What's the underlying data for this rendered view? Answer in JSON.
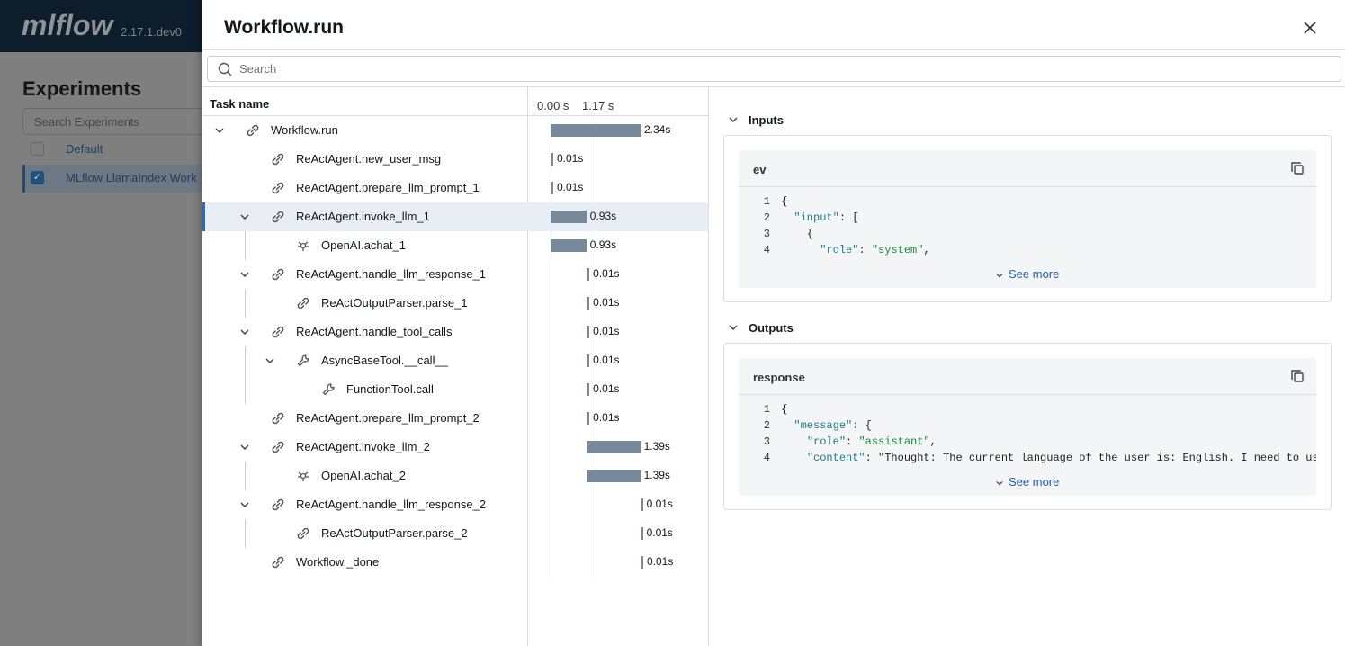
{
  "background": {
    "logo": "mlflow",
    "version": "2.17.1.dev0",
    "heading": "Experiments",
    "search_placeholder": "Search Experiments",
    "experiments": [
      "Default",
      "MLflow LlamaIndex Work"
    ]
  },
  "drawer": {
    "title": "Workflow.run",
    "search_placeholder": "Search",
    "tree": {
      "header": "Task name",
      "selected": 3,
      "timeline_ticks": [
        {
          "value": 0,
          "label": "0.00 s"
        },
        {
          "value": 1.17,
          "label": "1.17 s"
        }
      ],
      "spans": [
        {
          "name": "Workflow.run",
          "level": 0,
          "expandable": true,
          "icon": "link",
          "start": 0,
          "duration": 2.34,
          "duration_label": "2.34s"
        },
        {
          "name": "ReActAgent.new_user_msg",
          "level": 1,
          "expandable": false,
          "icon": "link",
          "start": 0,
          "duration": 0.01,
          "duration_label": "0.01s"
        },
        {
          "name": "ReActAgent.prepare_llm_prompt_1",
          "level": 1,
          "expandable": false,
          "icon": "link",
          "start": 0,
          "duration": 0.01,
          "duration_label": "0.01s"
        },
        {
          "name": "ReActAgent.invoke_llm_1",
          "level": 1,
          "expandable": true,
          "icon": "link",
          "start": 0,
          "duration": 0.93,
          "duration_label": "0.93s"
        },
        {
          "name": "OpenAI.achat_1",
          "level": 2,
          "expandable": false,
          "icon": "openai",
          "start": 0,
          "duration": 0.93,
          "duration_label": "0.93s"
        },
        {
          "name": "ReActAgent.handle_llm_response_1",
          "level": 1,
          "expandable": true,
          "icon": "link",
          "start": 0.94,
          "duration": 0.01,
          "duration_label": "0.01s"
        },
        {
          "name": "ReActOutputParser.parse_1",
          "level": 2,
          "expandable": false,
          "icon": "link",
          "start": 0.94,
          "duration": 0.01,
          "duration_label": "0.01s"
        },
        {
          "name": "ReActAgent.handle_tool_calls",
          "level": 1,
          "expandable": true,
          "icon": "link",
          "start": 0.94,
          "duration": 0.01,
          "duration_label": "0.01s"
        },
        {
          "name": "AsyncBaseTool.__call__",
          "level": 2,
          "expandable": true,
          "icon": "tool",
          "start": 0.94,
          "duration": 0.01,
          "duration_label": "0.01s"
        },
        {
          "name": "FunctionTool.call",
          "level": 3,
          "expandable": false,
          "icon": "tool",
          "start": 0.94,
          "duration": 0.01,
          "duration_label": "0.01s"
        },
        {
          "name": "ReActAgent.prepare_llm_prompt_2",
          "level": 1,
          "expandable": false,
          "icon": "link",
          "start": 0.94,
          "duration": 0.01,
          "duration_label": "0.01s"
        },
        {
          "name": "ReActAgent.invoke_llm_2",
          "level": 1,
          "expandable": true,
          "icon": "link",
          "start": 0.94,
          "duration": 1.39,
          "duration_label": "1.39s"
        },
        {
          "name": "OpenAI.achat_2",
          "level": 2,
          "expandable": false,
          "icon": "openai",
          "start": 0.94,
          "duration": 1.39,
          "duration_label": "1.39s"
        },
        {
          "name": "ReActAgent.handle_llm_response_2",
          "level": 1,
          "expandable": true,
          "icon": "link",
          "start": 2.33,
          "duration": 0.01,
          "duration_label": "0.01s"
        },
        {
          "name": "ReActOutputParser.parse_2",
          "level": 2,
          "expandable": false,
          "icon": "link",
          "start": 2.33,
          "duration": 0.01,
          "duration_label": "0.01s"
        },
        {
          "name": "Workflow._done",
          "level": 1,
          "expandable": false,
          "icon": "link",
          "start": 2.34,
          "duration": 0.01,
          "duration_label": "0.01s"
        }
      ]
    },
    "inputs": {
      "title": "Inputs",
      "key": "ev",
      "see_more": "See more",
      "lines": [
        {
          "n": 1,
          "text": "{"
        },
        {
          "n": 2,
          "text": "  \"input\": ["
        },
        {
          "n": 3,
          "text": "    {"
        },
        {
          "n": 4,
          "text": "      \"role\": \"system\","
        }
      ]
    },
    "outputs": {
      "title": "Outputs",
      "key": "response",
      "see_more": "See more",
      "lines": [
        {
          "n": 1,
          "text": "{"
        },
        {
          "n": 2,
          "text": "  \"message\": {"
        },
        {
          "n": 3,
          "text": "    \"role\": \"assistant\","
        },
        {
          "n": 4,
          "text": "    \"content\": \"Thought: The current language of the user is: English. I need to us"
        }
      ]
    }
  }
}
